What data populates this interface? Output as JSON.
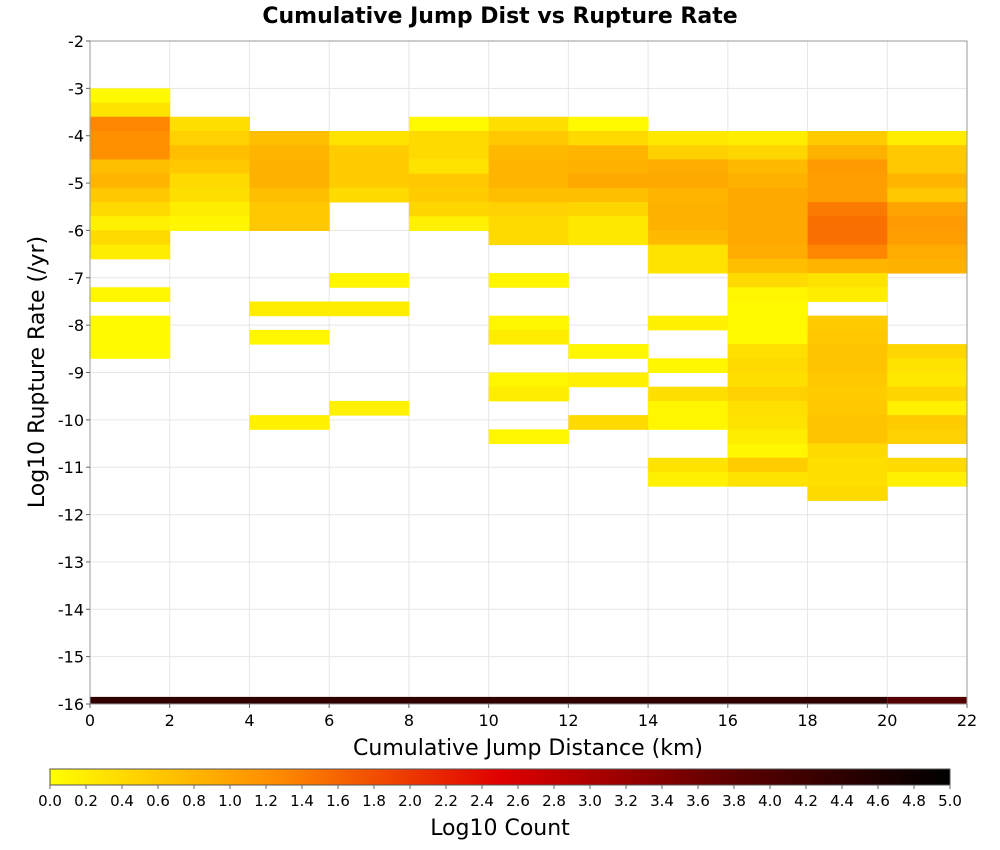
{
  "chart_data": {
    "type": "heatmap",
    "title": "Cumulative Jump Dist vs Rupture Rate",
    "xlabel": "Cumulative Jump Distance (km)",
    "ylabel": "Log10 Rupture Rate (/yr)",
    "xlim": [
      0,
      22
    ],
    "ylim": [
      -16,
      -2
    ],
    "x_ticks": [
      0,
      2,
      4,
      6,
      8,
      10,
      12,
      14,
      16,
      18,
      20,
      22
    ],
    "y_ticks": [
      -16,
      -15,
      -14,
      -13,
      -12,
      -11,
      -10,
      -9,
      -8,
      -7,
      -6,
      -5,
      -4,
      -3,
      -2
    ],
    "x_bin_width": 2,
    "y_bin_height": 0.3,
    "grid": true,
    "colorbar": {
      "label": "Log10 Count",
      "range": [
        0,
        5
      ],
      "ticks": [
        "0.0",
        "0.2",
        "0.4",
        "0.6",
        "0.8",
        "1.0",
        "1.2",
        "1.4",
        "1.6",
        "1.8",
        "2.0",
        "2.2",
        "2.4",
        "2.6",
        "2.8",
        "3.0",
        "3.2",
        "3.4",
        "3.6",
        "3.8",
        "4.0",
        "4.2",
        "4.4",
        "4.6",
        "4.8",
        "5.0"
      ],
      "colors": [
        "#ffff00",
        "#ff8c00",
        "#e00000",
        "#600000",
        "#000000"
      ]
    },
    "columns": [
      {
        "x0": 0,
        "cells": [
          [
            -3.3,
            0.05
          ],
          [
            -3.6,
            0.3
          ],
          [
            -3.9,
            1.3
          ],
          [
            -4.2,
            1.2
          ],
          [
            -4.5,
            1.2
          ],
          [
            -4.8,
            0.7
          ],
          [
            -5.1,
            0.8
          ],
          [
            -5.4,
            0.6
          ],
          [
            -5.7,
            0.4
          ],
          [
            -6.0,
            0.15
          ],
          [
            -6.3,
            0.4
          ],
          [
            -6.6,
            0.2
          ],
          [
            -7.5,
            0.1
          ],
          [
            -8.1,
            0.05
          ],
          [
            -8.4,
            0.05
          ],
          [
            -8.7,
            0.05
          ]
        ]
      },
      {
        "x0": 2,
        "cells": [
          [
            -3.9,
            0.35
          ],
          [
            -4.2,
            0.5
          ],
          [
            -4.5,
            0.7
          ],
          [
            -4.8,
            0.6
          ],
          [
            -5.1,
            0.4
          ],
          [
            -5.4,
            0.35
          ],
          [
            -5.7,
            0.2
          ],
          [
            -6.0,
            0.1
          ]
        ]
      },
      {
        "x0": 4,
        "cells": [
          [
            -4.2,
            0.7
          ],
          [
            -4.5,
            0.8
          ],
          [
            -4.8,
            0.85
          ],
          [
            -5.1,
            0.85
          ],
          [
            -5.4,
            0.7
          ],
          [
            -5.7,
            0.6
          ],
          [
            -6.0,
            0.6
          ],
          [
            -7.8,
            0.2
          ],
          [
            -8.4,
            0.1
          ],
          [
            -10.2,
            0.15
          ]
        ]
      },
      {
        "x0": 6,
        "cells": [
          [
            -4.2,
            0.3
          ],
          [
            -4.5,
            0.55
          ],
          [
            -4.8,
            0.55
          ],
          [
            -5.1,
            0.55
          ],
          [
            -5.4,
            0.4
          ],
          [
            -7.2,
            0.1
          ],
          [
            -7.8,
            0.2
          ],
          [
            -9.9,
            0.15
          ]
        ]
      },
      {
        "x0": 8,
        "cells": [
          [
            -3.9,
            0.05
          ],
          [
            -4.2,
            0.4
          ],
          [
            -4.5,
            0.4
          ],
          [
            -4.8,
            0.3
          ],
          [
            -5.1,
            0.6
          ],
          [
            -5.4,
            0.55
          ],
          [
            -5.7,
            0.45
          ],
          [
            -6.0,
            0.15
          ]
        ]
      },
      {
        "x0": 10,
        "cells": [
          [
            -3.9,
            0.35
          ],
          [
            -4.2,
            0.6
          ],
          [
            -4.5,
            0.75
          ],
          [
            -4.8,
            0.8
          ],
          [
            -5.1,
            0.8
          ],
          [
            -5.4,
            0.7
          ],
          [
            -5.7,
            0.5
          ],
          [
            -6.0,
            0.4
          ],
          [
            -6.3,
            0.4
          ],
          [
            -7.2,
            0.1
          ],
          [
            -8.1,
            0.1
          ],
          [
            -8.4,
            0.2
          ],
          [
            -9.3,
            0.1
          ],
          [
            -9.6,
            0.2
          ],
          [
            -10.5,
            0.1
          ]
        ]
      },
      {
        "x0": 12,
        "cells": [
          [
            -3.9,
            0.05
          ],
          [
            -4.2,
            0.4
          ],
          [
            -4.5,
            0.8
          ],
          [
            -4.8,
            0.85
          ],
          [
            -5.1,
            0.95
          ],
          [
            -5.4,
            0.7
          ],
          [
            -5.7,
            0.45
          ],
          [
            -6.0,
            0.25
          ],
          [
            -6.3,
            0.25
          ],
          [
            -8.7,
            0.1
          ],
          [
            -9.3,
            0.15
          ],
          [
            -10.2,
            0.4
          ]
        ]
      },
      {
        "x0": 14,
        "cells": [
          [
            -4.2,
            0.25
          ],
          [
            -4.5,
            0.5
          ],
          [
            -4.8,
            0.9
          ],
          [
            -5.1,
            0.95
          ],
          [
            -5.4,
            0.8
          ],
          [
            -5.7,
            0.85
          ],
          [
            -6.0,
            0.85
          ],
          [
            -6.3,
            0.75
          ],
          [
            -6.6,
            0.3
          ],
          [
            -6.9,
            0.3
          ],
          [
            -8.1,
            0.15
          ],
          [
            -9.0,
            0.1
          ],
          [
            -9.6,
            0.35
          ],
          [
            -9.9,
            0.1
          ],
          [
            -10.2,
            0.1
          ],
          [
            -11.1,
            0.3
          ],
          [
            -11.4,
            0.15
          ]
        ]
      },
      {
        "x0": 16,
        "cells": [
          [
            -4.2,
            0.2
          ],
          [
            -4.5,
            0.45
          ],
          [
            -4.8,
            0.75
          ],
          [
            -5.1,
            0.85
          ],
          [
            -5.4,
            0.95
          ],
          [
            -5.7,
            0.95
          ],
          [
            -6.0,
            0.95
          ],
          [
            -6.3,
            0.95
          ],
          [
            -6.6,
            0.9
          ],
          [
            -6.9,
            0.7
          ],
          [
            -7.2,
            0.4
          ],
          [
            -7.5,
            0.1
          ],
          [
            -7.8,
            0.05
          ],
          [
            -8.1,
            0.05
          ],
          [
            -8.4,
            0.05
          ],
          [
            -8.7,
            0.35
          ],
          [
            -9.0,
            0.4
          ],
          [
            -9.3,
            0.35
          ],
          [
            -9.6,
            0.5
          ],
          [
            -9.9,
            0.35
          ],
          [
            -10.2,
            0.3
          ],
          [
            -10.5,
            0.2
          ],
          [
            -10.8,
            0.1
          ],
          [
            -11.1,
            0.55
          ],
          [
            -11.4,
            0.3
          ]
        ]
      },
      {
        "x0": 18,
        "cells": [
          [
            -4.2,
            0.55
          ],
          [
            -4.5,
            0.85
          ],
          [
            -4.8,
            1.1
          ],
          [
            -5.1,
            1.05
          ],
          [
            -5.4,
            1.05
          ],
          [
            -5.7,
            1.4
          ],
          [
            -6.0,
            1.5
          ],
          [
            -6.3,
            1.5
          ],
          [
            -6.6,
            1.3
          ],
          [
            -6.9,
            0.8
          ],
          [
            -7.2,
            0.3
          ],
          [
            -7.5,
            0.2
          ],
          [
            -8.1,
            0.55
          ],
          [
            -8.4,
            0.6
          ],
          [
            -8.7,
            0.65
          ],
          [
            -9.0,
            0.65
          ],
          [
            -9.3,
            0.6
          ],
          [
            -9.6,
            0.55
          ],
          [
            -9.9,
            0.6
          ],
          [
            -10.2,
            0.65
          ],
          [
            -10.5,
            0.65
          ],
          [
            -10.8,
            0.4
          ],
          [
            -11.1,
            0.35
          ],
          [
            -11.4,
            0.35
          ],
          [
            -11.7,
            0.4
          ]
        ]
      },
      {
        "x0": 20,
        "cells": [
          [
            -4.2,
            0.2
          ],
          [
            -4.5,
            0.6
          ],
          [
            -4.8,
            0.6
          ],
          [
            -5.1,
            0.8
          ],
          [
            -5.4,
            0.6
          ],
          [
            -5.7,
            1.0
          ],
          [
            -6.0,
            1.1
          ],
          [
            -6.3,
            1.05
          ],
          [
            -6.6,
            0.9
          ],
          [
            -6.9,
            0.85
          ],
          [
            -8.7,
            0.45
          ],
          [
            -9.0,
            0.3
          ],
          [
            -9.3,
            0.25
          ],
          [
            -9.6,
            0.45
          ],
          [
            -9.9,
            0.15
          ],
          [
            -10.2,
            0.55
          ],
          [
            -10.5,
            0.5
          ],
          [
            -11.1,
            0.4
          ],
          [
            -11.4,
            0.15
          ]
        ]
      }
    ],
    "bottom_row": {
      "y0": -16,
      "y1": -15.85,
      "value": 4.4,
      "end_value": 3.9
    }
  }
}
